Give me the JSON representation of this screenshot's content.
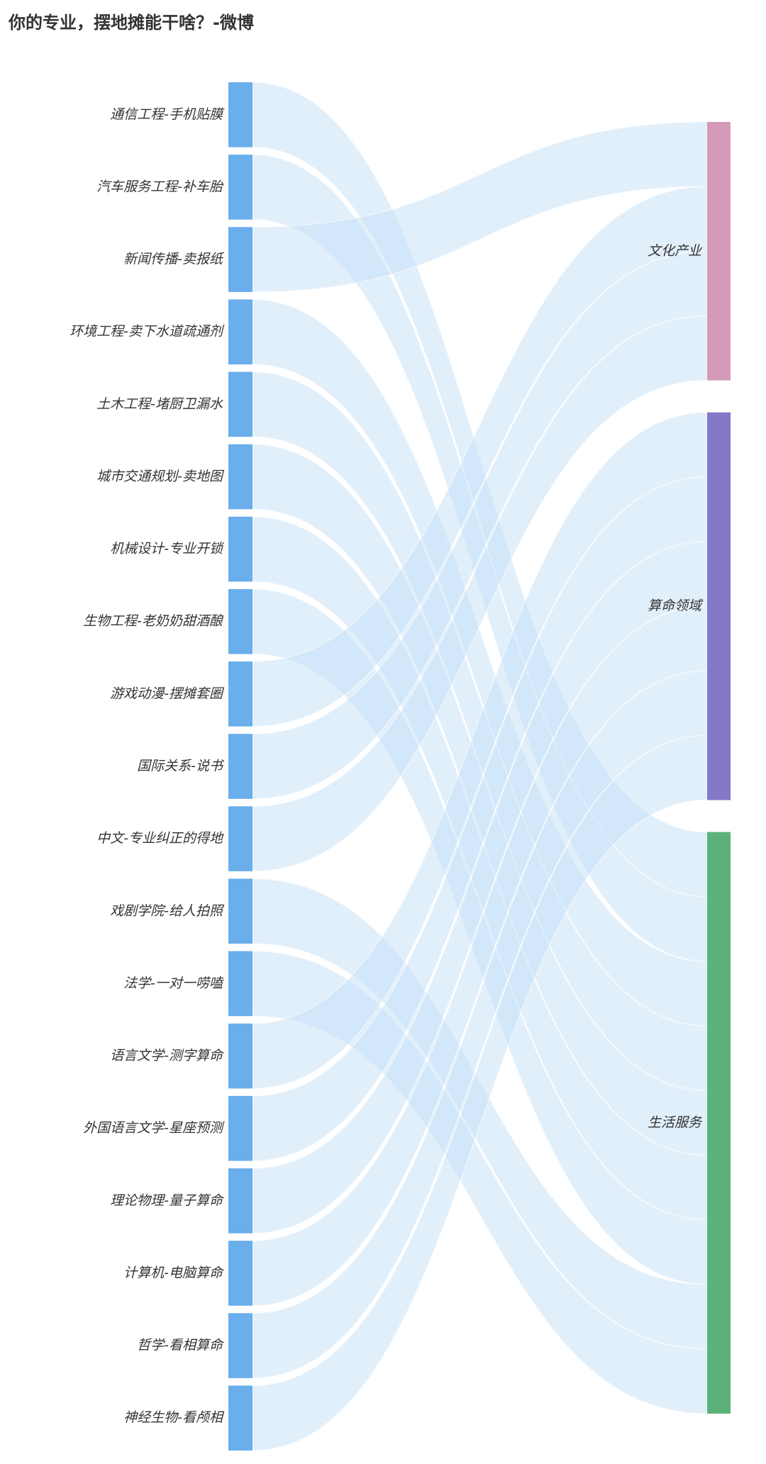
{
  "page": {
    "title": "你的专业，摆地摊能干啥？-微博"
  },
  "chart_data": {
    "type": "sankey",
    "title": "",
    "sources": [
      "通信工程-手机贴膜",
      "汽车服务工程-补车胎",
      "新闻传播-卖报纸",
      "环境工程-卖下水道疏通剂",
      "土木工程-堵厨卫漏水",
      "城市交通规划-卖地图",
      "机械设计-专业开锁",
      "生物工程-老奶奶甜酒酿",
      "游戏动漫-摆摊套圈",
      "国际关系-说书",
      "中文-专业纠正的得地",
      "戏剧学院-给人拍照",
      "法学-一对一唠嗑",
      "语言文学-测字算命",
      "外国语言文学-星座预测",
      "理论物理-量子算命",
      "计算机-电脑算命",
      "哲学-看相算命",
      "神经生物-看颅相"
    ],
    "targets": [
      "文化产业",
      "算命领域",
      "生活服务"
    ],
    "links": [
      {
        "source": "通信工程-手机贴膜",
        "target": "生活服务",
        "value": 1
      },
      {
        "source": "汽车服务工程-补车胎",
        "target": "生活服务",
        "value": 1
      },
      {
        "source": "新闻传播-卖报纸",
        "target": "文化产业",
        "value": 1
      },
      {
        "source": "环境工程-卖下水道疏通剂",
        "target": "生活服务",
        "value": 1
      },
      {
        "source": "土木工程-堵厨卫漏水",
        "target": "生活服务",
        "value": 1
      },
      {
        "source": "城市交通规划-卖地图",
        "target": "生活服务",
        "value": 1
      },
      {
        "source": "机械设计-专业开锁",
        "target": "生活服务",
        "value": 1
      },
      {
        "source": "生物工程-老奶奶甜酒酿",
        "target": "生活服务",
        "value": 1
      },
      {
        "source": "游戏动漫-摆摊套圈",
        "target": "文化产业",
        "value": 1
      },
      {
        "source": "国际关系-说书",
        "target": "文化产业",
        "value": 1
      },
      {
        "source": "中文-专业纠正的得地",
        "target": "文化产业",
        "value": 1
      },
      {
        "source": "戏剧学院-给人拍照",
        "target": "生活服务",
        "value": 1
      },
      {
        "source": "法学-一对一唠嗑",
        "target": "生活服务",
        "value": 1
      },
      {
        "source": "语言文学-测字算命",
        "target": "算命领域",
        "value": 1
      },
      {
        "source": "外国语言文学-星座预测",
        "target": "算命领域",
        "value": 1
      },
      {
        "source": "理论物理-量子算命",
        "target": "算命领域",
        "value": 1
      },
      {
        "source": "计算机-电脑算命",
        "target": "算命领域",
        "value": 1
      },
      {
        "source": "哲学-看相算命",
        "target": "算命领域",
        "value": 1
      },
      {
        "source": "神经生物-看颅相",
        "target": "算命领域",
        "value": 1
      }
    ],
    "colors": {
      "source_node": "#6aaeec",
      "link": "#c3dff8",
      "文化产业": "#d49ab8",
      "算命领域": "#8479c8",
      "生活服务": "#5cb37a"
    }
  }
}
